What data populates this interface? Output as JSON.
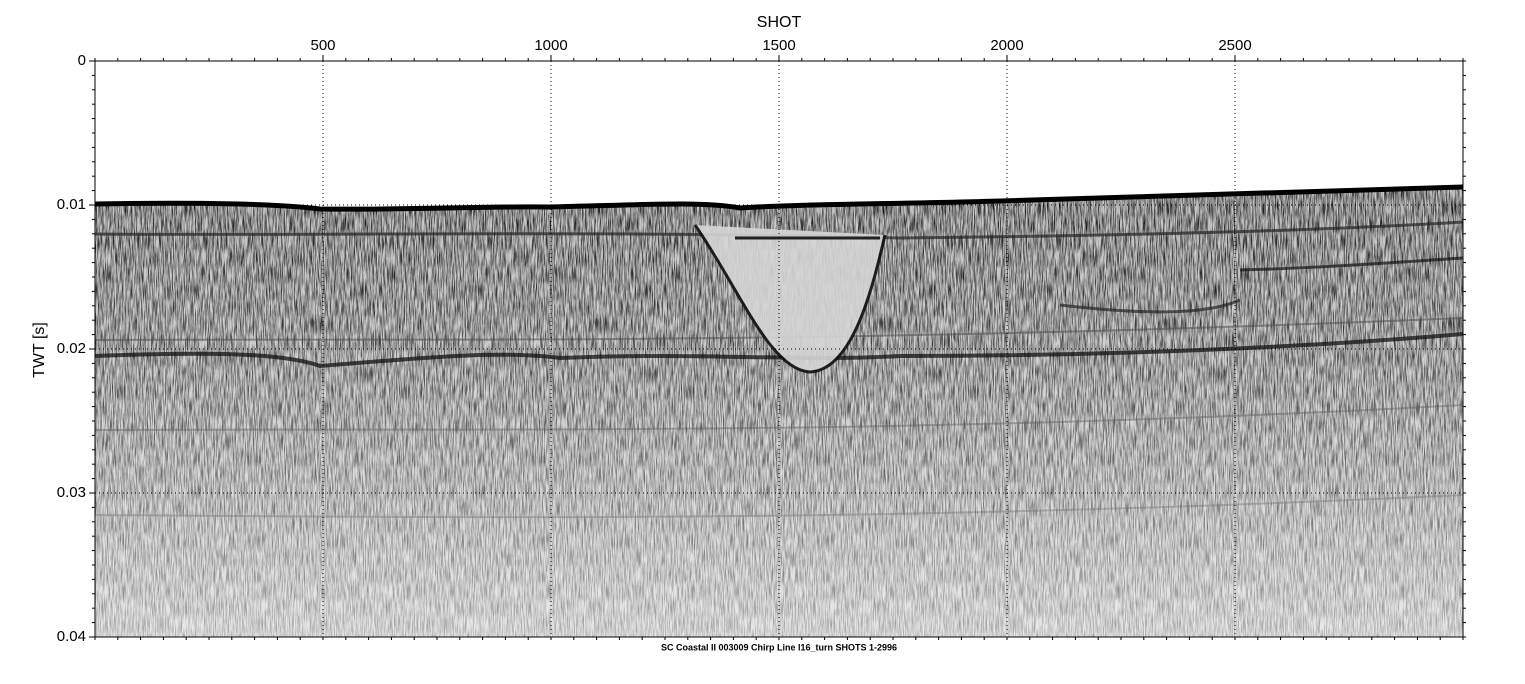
{
  "chart_data": {
    "type": "seismic-section",
    "title": "SC Coastal II 003009 Chirp Line l16_turn SHOTS 1-2996",
    "x_label": "SHOT",
    "y_label": "TWT [s]",
    "xlim": [
      0,
      3000
    ],
    "xticks": [
      500,
      1000,
      1500,
      2000,
      2500
    ],
    "ylim": [
      0,
      0.04
    ],
    "yticks": [
      0,
      0.01,
      0.02,
      0.03,
      0.04
    ],
    "y_inverted": true,
    "x_axis_position": "top",
    "grid": true,
    "minor_ticks": true
  }
}
